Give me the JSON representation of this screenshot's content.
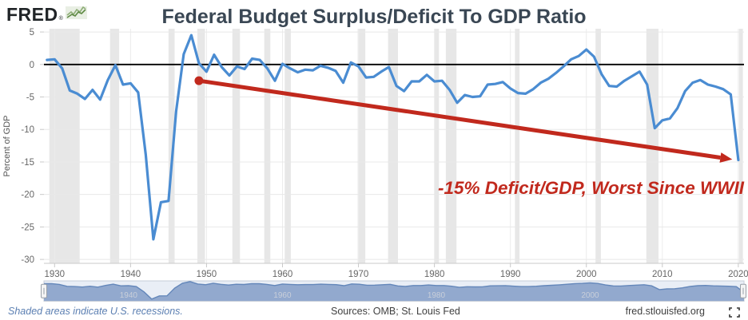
{
  "header": {
    "logo_text": "FRED",
    "reg_mark": "®"
  },
  "colors": {
    "title_navy": "#3a4754",
    "line_blue": "#4a8cd2",
    "annotation_red": "#c1291d",
    "recession_band": "#e7e7e7",
    "grid_line": "#e8e8e8",
    "grid_line_v": "#ececec",
    "zero_line": "#000000",
    "axis_line": "#c9c9c9",
    "navigator_bg": "#e9eef6",
    "navigator_fill": "#92a9ce",
    "navigator_stroke": "#6487ba",
    "footer_blue": "#5b7fb2",
    "logo_green_dark": "#5e8a43",
    "logo_green_light": "#8fae78",
    "logo_icon_bg": "#e9efe4"
  },
  "chart_data": {
    "type": "line",
    "title": "Federal Budget Surplus/Deficit To GDP Ratio",
    "xlabel": "",
    "ylabel": "Percent of GDP",
    "x_start": 1929,
    "x_step": 1,
    "values": [
      0.7,
      0.8,
      -0.6,
      -4.0,
      -4.5,
      -5.3,
      -3.9,
      -5.4,
      -2.4,
      -0.1,
      -3.1,
      -2.9,
      -4.3,
      -13.9,
      -26.9,
      -21.2,
      -21.0,
      -7.2,
      1.6,
      4.5,
      0.2,
      -1.1,
      1.5,
      -0.4,
      -1.7,
      -0.3,
      -0.7,
      0.9,
      0.7,
      -0.6,
      -2.5,
      0.1,
      -0.6,
      -1.2,
      -0.8,
      -0.9,
      -0.2,
      -0.5,
      -1.0,
      -2.8,
      0.3,
      -0.3,
      -2.0,
      -1.9,
      -1.1,
      -0.4,
      -3.3,
      -4.1,
      -2.6,
      -2.6,
      -1.6,
      -2.6,
      -2.5,
      -3.9,
      -5.9,
      -4.7,
      -5.0,
      -4.9,
      -3.1,
      -3.0,
      -2.7,
      -3.7,
      -4.4,
      -4.5,
      -3.8,
      -2.8,
      -2.2,
      -1.3,
      -0.3,
      0.8,
      1.3,
      2.3,
      1.2,
      -1.5,
      -3.3,
      -3.4,
      -2.5,
      -1.8,
      -1.1,
      -3.1,
      -9.8,
      -8.6,
      -8.3,
      -6.7,
      -4.1,
      -2.8,
      -2.4,
      -3.1,
      -3.4,
      -3.8,
      -4.6,
      -14.7
    ],
    "xticks": [
      1930,
      1940,
      1950,
      1960,
      1970,
      1980,
      1990,
      2000,
      2010,
      2020
    ],
    "yticks": [
      5,
      0,
      -5,
      -10,
      -15,
      -20,
      -25,
      -30
    ],
    "xlim": [
      1928.6,
      2020.75
    ],
    "ylim": [
      5.5,
      -30.6
    ],
    "grid": true,
    "zero_line": true,
    "legend": "none",
    "recessions": [
      [
        1929.3,
        1933.3
      ],
      [
        1937.3,
        1938.5
      ],
      [
        1945.0,
        1945.8
      ],
      [
        1948.8,
        1949.8
      ],
      [
        1953.4,
        1954.4
      ],
      [
        1957.6,
        1958.4
      ],
      [
        1960.3,
        1961.1
      ],
      [
        1969.9,
        1970.9
      ],
      [
        1973.9,
        1975.2
      ],
      [
        1980.0,
        1980.6
      ],
      [
        1981.5,
        1982.9
      ],
      [
        1990.6,
        1991.2
      ],
      [
        2001.2,
        2001.9
      ],
      [
        2007.9,
        2009.5
      ],
      [
        2020.1,
        2020.6
      ]
    ],
    "annotation": {
      "label": "-15% Deficit/GDP, Worst Since WWII",
      "start_year": 1949,
      "start_value": -2.5,
      "end_year": 2019.2,
      "end_value": -14.6
    }
  },
  "navigator": {
    "labels": [
      "1940",
      "1960",
      "1980",
      "2000"
    ]
  },
  "footer": {
    "left": "Shaded areas indicate U.S. recessions.",
    "center": "Sources: OMB; St. Louis Fed",
    "right": "fred.stlouisfed.org"
  }
}
